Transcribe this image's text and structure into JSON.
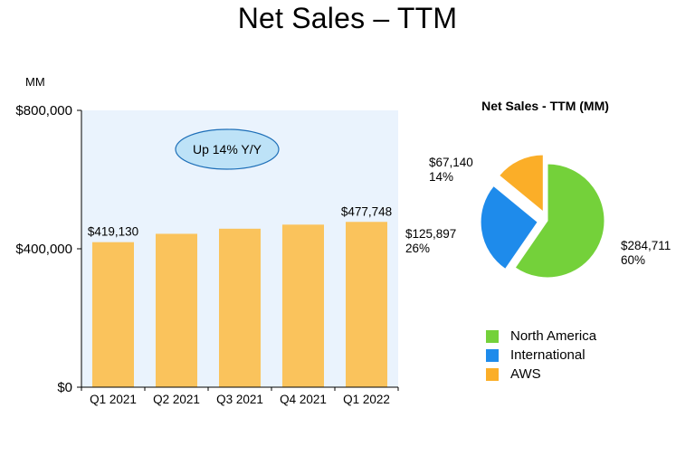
{
  "title": "Net Sales – TTM",
  "unit_label": "MM",
  "colors": {
    "plot_bg": "#EAF3FD",
    "bar": "#FAC35C",
    "axis": "#000000",
    "callout_fill": "#BDE2F7",
    "callout_stroke": "#1E6FB8",
    "north_america": "#74D13A",
    "international": "#1E8BEB",
    "aws": "#FBAE28"
  },
  "chart_data": [
    {
      "type": "bar",
      "categories": [
        "Q1 2021",
        "Q2 2021",
        "Q3 2021",
        "Q4 2021",
        "Q1 2022"
      ],
      "values": [
        419130,
        443298,
        457965,
        469822,
        477748
      ],
      "data_labels": [
        "$419,130",
        "",
        "",
        "",
        "$477,748"
      ],
      "ylim": [
        0,
        800000
      ],
      "yticks": [
        0,
        400000,
        800000
      ],
      "ytick_labels": [
        "$0",
        "$400,000",
        "$800,000"
      ],
      "ylabel": "MM",
      "annotation": "Up 14% Y/Y",
      "grid": false
    },
    {
      "type": "pie",
      "title": "Net Sales - TTM (MM)",
      "slices": [
        {
          "name": "North America",
          "value": 284711,
          "value_label": "$284,711",
          "percent_label": "60%",
          "color_key": "north_america"
        },
        {
          "name": "International",
          "value": 125897,
          "value_label": "$125,897",
          "percent_label": "26%",
          "color_key": "international"
        },
        {
          "name": "AWS",
          "value": 67140,
          "value_label": "$67,140",
          "percent_label": "14%",
          "color_key": "aws"
        }
      ],
      "legend": [
        "North America",
        "International",
        "AWS"
      ],
      "legend_position": "bottom"
    }
  ]
}
